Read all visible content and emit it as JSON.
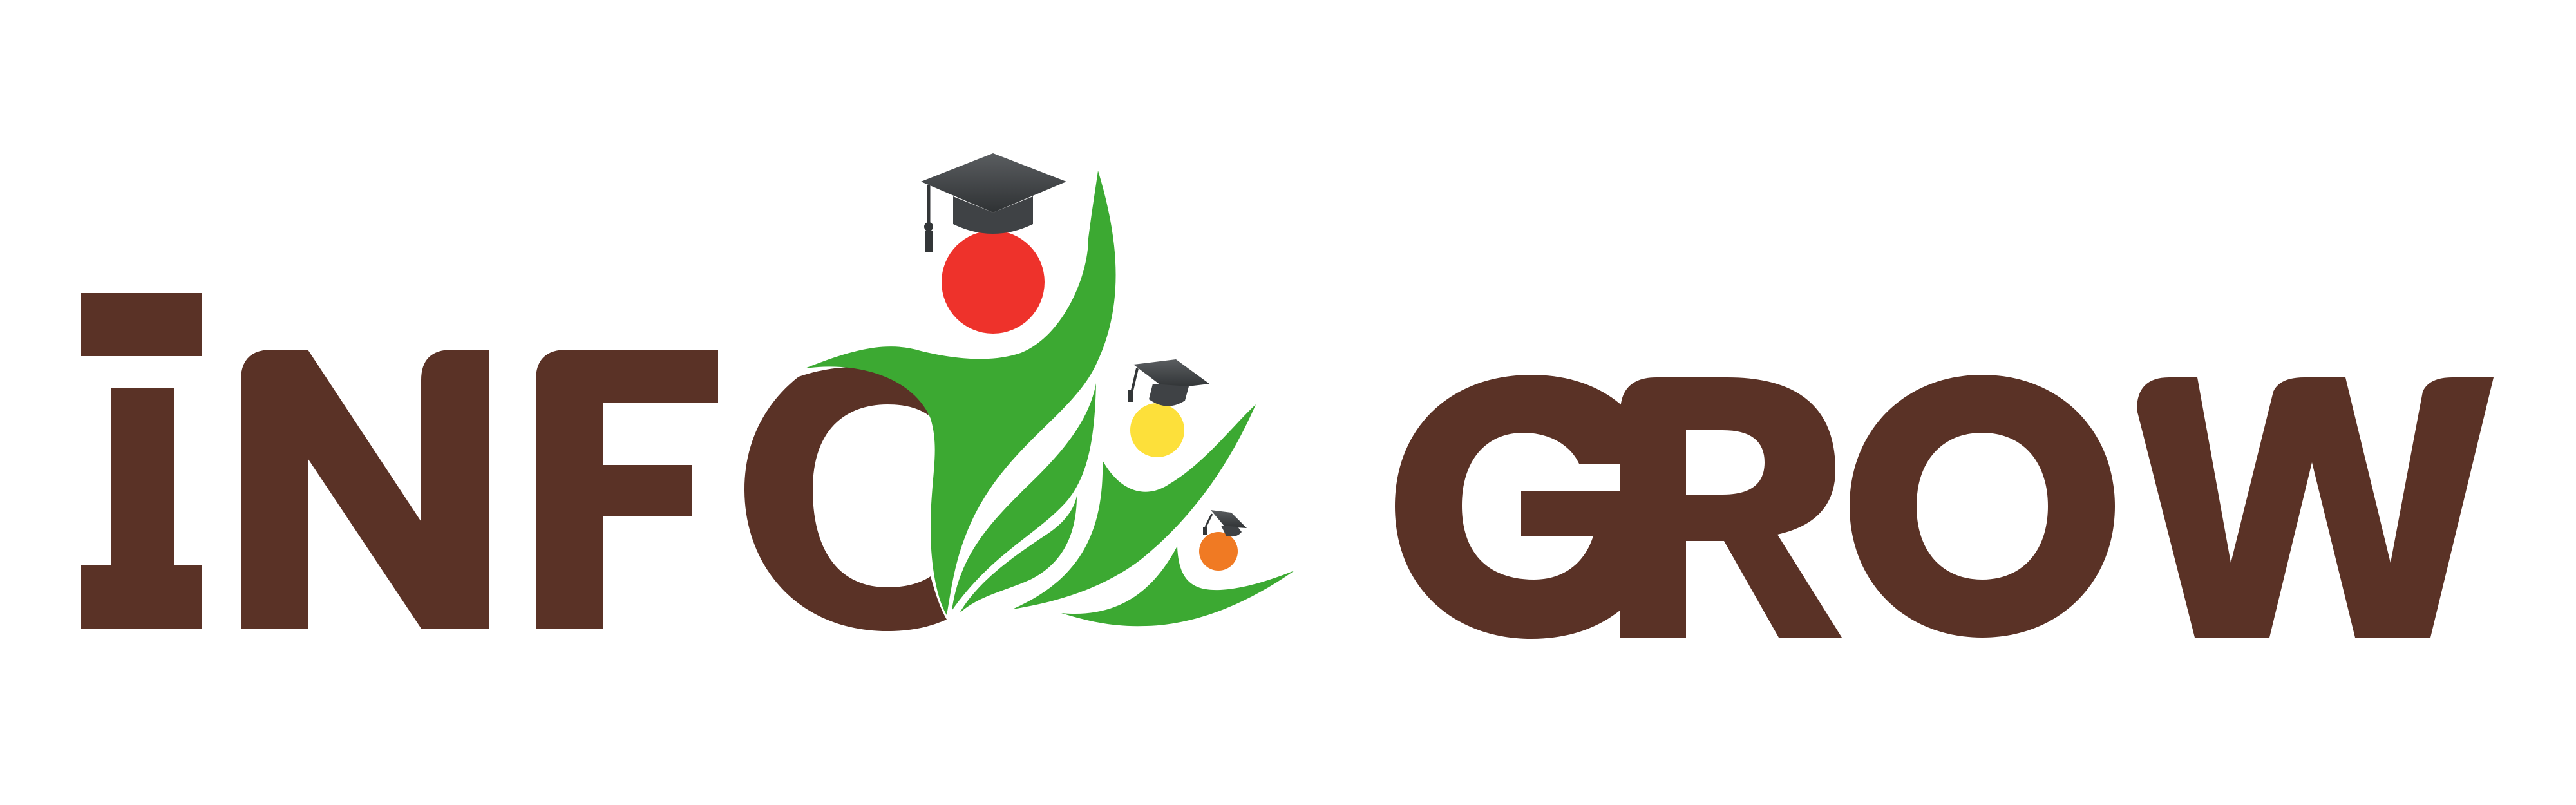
{
  "logo": {
    "text_left": "iNFO",
    "text_right": "GROW",
    "colors": {
      "text": "#5a3226",
      "leaf_green": "#3ca932",
      "head_red": "#ee322b",
      "head_yellow": "#fde03a",
      "head_orange": "#f07a23",
      "cap_dark": "#333638",
      "cap_mid": "#4a4d50",
      "background": "#ffffff"
    },
    "icons": [
      "graduation-cap-icon",
      "graduate-figure-icon",
      "leaf-icon"
    ]
  }
}
